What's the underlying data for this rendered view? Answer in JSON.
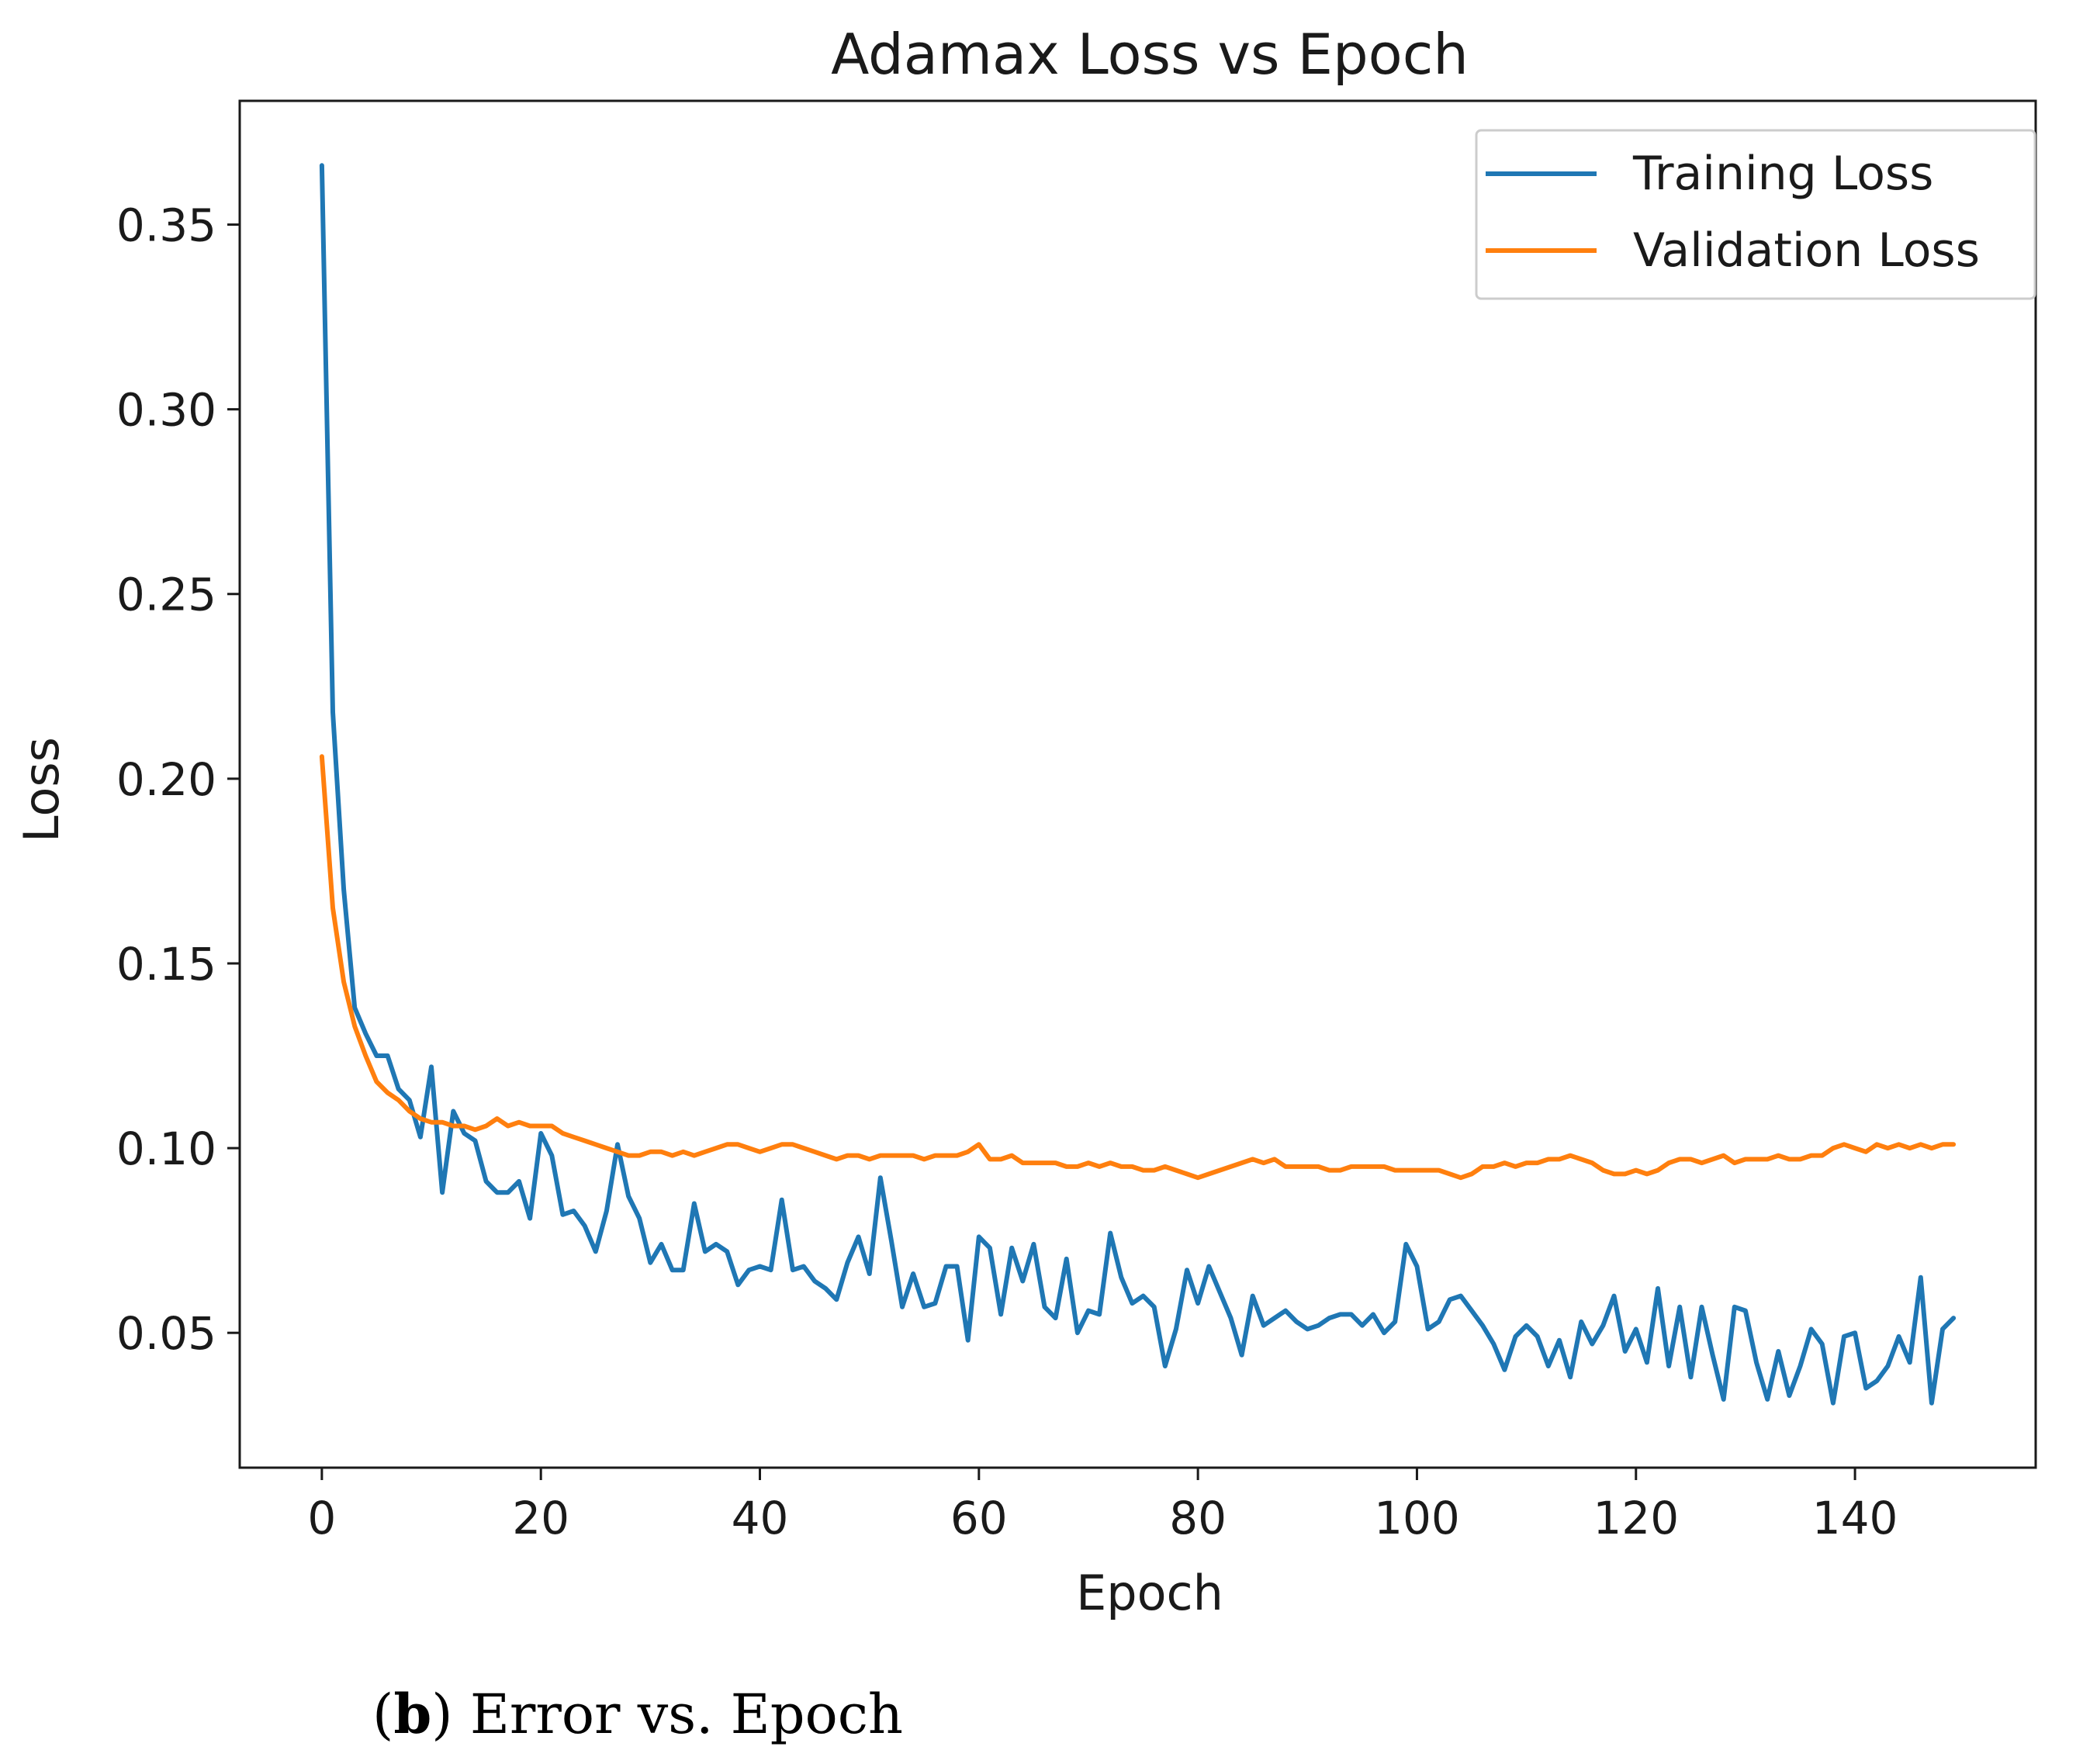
{
  "chart_data": {
    "type": "line",
    "title": "Adamax Loss vs Epoch",
    "xlabel": "Epoch",
    "ylabel": "Loss",
    "xlim": [
      -7.5,
      156.5
    ],
    "ylim": [
      0.0135,
      0.3835
    ],
    "xticks": [
      0,
      20,
      40,
      60,
      80,
      100,
      120,
      140
    ],
    "xtick_labels": [
      "0",
      "20",
      "40",
      "60",
      "80",
      "100",
      "120",
      "140"
    ],
    "yticks": [
      0.05,
      0.1,
      0.15,
      0.2,
      0.25,
      0.3,
      0.35
    ],
    "ytick_labels": [
      "0.05",
      "0.10",
      "0.15",
      "0.20",
      "0.25",
      "0.30",
      "0.35"
    ],
    "grid": false,
    "legend_position": "top-right",
    "series": [
      {
        "name": "Training Loss",
        "color": "#1f77b4",
        "values": [
          0.366,
          0.218,
          0.17,
          0.138,
          0.131,
          0.125,
          0.125,
          0.116,
          0.113,
          0.103,
          0.122,
          0.088,
          0.11,
          0.104,
          0.102,
          0.091,
          0.088,
          0.088,
          0.091,
          0.081,
          0.104,
          0.098,
          0.082,
          0.083,
          0.079,
          0.072,
          0.083,
          0.101,
          0.087,
          0.081,
          0.069,
          0.074,
          0.067,
          0.067,
          0.085,
          0.072,
          0.074,
          0.072,
          0.063,
          0.067,
          0.068,
          0.067,
          0.086,
          0.067,
          0.068,
          0.064,
          0.062,
          0.059,
          0.069,
          0.076,
          0.066,
          0.092,
          0.075,
          0.057,
          0.066,
          0.057,
          0.058,
          0.068,
          0.068,
          0.048,
          0.076,
          0.073,
          0.055,
          0.073,
          0.064,
          0.074,
          0.057,
          0.054,
          0.07,
          0.05,
          0.056,
          0.055,
          0.077,
          0.065,
          0.058,
          0.06,
          0.057,
          0.041,
          0.051,
          0.067,
          0.058,
          0.068,
          0.061,
          0.054,
          0.044,
          0.06,
          0.052,
          0.054,
          0.056,
          0.053,
          0.051,
          0.052,
          0.054,
          0.055,
          0.055,
          0.052,
          0.055,
          0.05,
          0.053,
          0.074,
          0.068,
          0.051,
          0.053,
          0.059,
          0.06,
          0.056,
          0.052,
          0.047,
          0.04,
          0.049,
          0.052,
          0.049,
          0.041,
          0.048,
          0.038,
          0.053,
          0.047,
          0.052,
          0.06,
          0.045,
          0.051,
          0.042,
          0.062,
          0.041,
          0.057,
          0.038,
          0.057,
          0.044,
          0.032,
          0.057,
          0.056,
          0.042,
          0.032,
          0.045,
          0.033,
          0.041,
          0.051,
          0.047,
          0.031,
          0.049,
          0.05,
          0.035,
          0.037,
          0.041,
          0.049,
          0.042,
          0.065,
          0.031,
          0.051,
          0.054
        ]
      },
      {
        "name": "Validation Loss",
        "color": "#ff7f0e",
        "values": [
          0.206,
          0.165,
          0.145,
          0.133,
          0.125,
          0.118,
          0.115,
          0.113,
          0.11,
          0.108,
          0.107,
          0.107,
          0.106,
          0.106,
          0.105,
          0.106,
          0.108,
          0.106,
          0.107,
          0.106,
          0.106,
          0.106,
          0.104,
          0.103,
          0.102,
          0.101,
          0.1,
          0.099,
          0.098,
          0.098,
          0.099,
          0.099,
          0.098,
          0.099,
          0.098,
          0.099,
          0.1,
          0.101,
          0.101,
          0.1,
          0.099,
          0.1,
          0.101,
          0.101,
          0.1,
          0.099,
          0.098,
          0.097,
          0.098,
          0.098,
          0.097,
          0.098,
          0.098,
          0.098,
          0.098,
          0.097,
          0.098,
          0.098,
          0.098,
          0.099,
          0.101,
          0.097,
          0.097,
          0.098,
          0.096,
          0.096,
          0.096,
          0.096,
          0.095,
          0.095,
          0.096,
          0.095,
          0.096,
          0.095,
          0.095,
          0.094,
          0.094,
          0.095,
          0.094,
          0.093,
          0.092,
          0.093,
          0.094,
          0.095,
          0.096,
          0.097,
          0.096,
          0.097,
          0.095,
          0.095,
          0.095,
          0.095,
          0.094,
          0.094,
          0.095,
          0.095,
          0.095,
          0.095,
          0.094,
          0.094,
          0.094,
          0.094,
          0.094,
          0.093,
          0.092,
          0.093,
          0.095,
          0.095,
          0.096,
          0.095,
          0.096,
          0.096,
          0.097,
          0.097,
          0.098,
          0.097,
          0.096,
          0.094,
          0.093,
          0.093,
          0.094,
          0.093,
          0.094,
          0.096,
          0.097,
          0.097,
          0.096,
          0.097,
          0.098,
          0.096,
          0.097,
          0.097,
          0.097,
          0.098,
          0.097,
          0.097,
          0.098,
          0.098,
          0.1,
          0.101,
          0.1,
          0.099,
          0.101,
          0.1,
          0.101,
          0.1,
          0.101,
          0.1,
          0.101,
          0.101
        ]
      }
    ]
  },
  "caption": {
    "open_paren": "(",
    "label": "b",
    "text": ") Error vs. Epoch"
  }
}
